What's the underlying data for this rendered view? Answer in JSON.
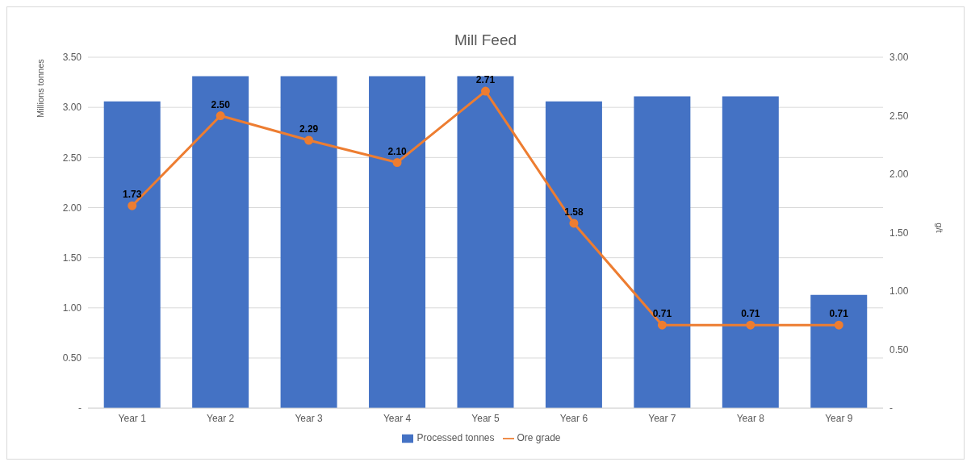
{
  "chart_data": {
    "type": "bar",
    "title": "Mill Feed",
    "ylabel": "Millions tonnes",
    "y2label": "g/t",
    "categories": [
      "Year 1",
      "Year 2",
      "Year 3",
      "Year 4",
      "Year 5",
      "Year 6",
      "Year 7",
      "Year 8",
      "Year 9"
    ],
    "series": [
      {
        "name": "Processed tonnes",
        "color": "#4472c4",
        "values": [
          3.06,
          3.31,
          3.31,
          3.31,
          3.31,
          3.06,
          3.11,
          3.11,
          1.13
        ]
      },
      {
        "name": "Ore grade",
        "type": "line",
        "axis": "y2",
        "color": "#ed7d31",
        "values": [
          1.73,
          2.5,
          2.29,
          2.1,
          2.71,
          1.58,
          0.71,
          0.71,
          0.71
        ],
        "value_labels": [
          "1.73",
          "2.50",
          "2.29",
          "2.10",
          "2.71",
          "1.58",
          "0.71",
          "0.71",
          "0.71"
        ]
      }
    ],
    "ylim": [
      0,
      3.5
    ],
    "yticks": [
      {
        "value": 0,
        "label": "-"
      },
      {
        "value": 0.5,
        "label": "0.50"
      },
      {
        "value": 1,
        "label": "1.00"
      },
      {
        "value": 1.5,
        "label": "1.50"
      },
      {
        "value": 2,
        "label": "2.00"
      },
      {
        "value": 2.5,
        "label": "2.50"
      },
      {
        "value": 3,
        "label": "3.00"
      },
      {
        "value": 3.5,
        "label": "3.50"
      }
    ],
    "y2lim": [
      0,
      3
    ],
    "y2ticks": [
      {
        "value": 0,
        "label": "-"
      },
      {
        "value": 0.5,
        "label": "0.50"
      },
      {
        "value": 1,
        "label": "1.00"
      },
      {
        "value": 1.5,
        "label": "1.50"
      },
      {
        "value": 2,
        "label": "2.00"
      },
      {
        "value": 2.5,
        "label": "2.50"
      },
      {
        "value": 3,
        "label": "3.00"
      }
    ],
    "grid": "y",
    "legend": "bottom",
    "marker": "circle",
    "line_style": "solid"
  }
}
